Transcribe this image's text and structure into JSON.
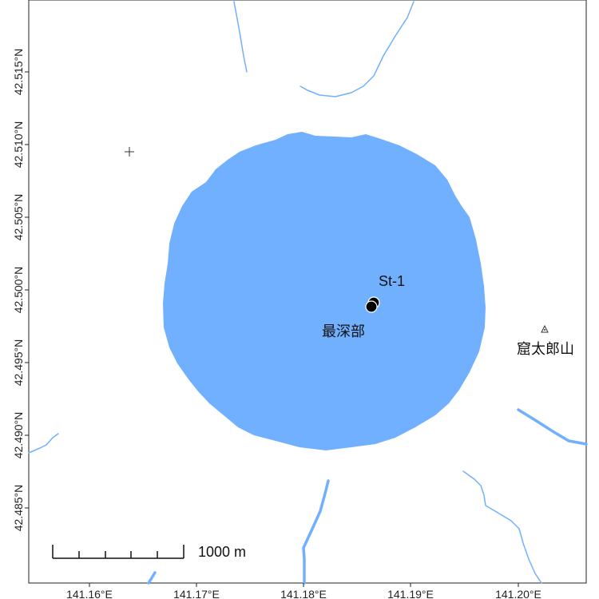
{
  "map": {
    "x_axis_labels": [
      "141.16°E",
      "141.17°E",
      "141.18°E",
      "141.19°E",
      "141.20°E"
    ],
    "y_axis_labels": [
      "42.515°N",
      "42.510°N",
      "42.505°N",
      "42.500°N",
      "42.495°N",
      "42.490°N",
      "42.485°N"
    ],
    "features": {
      "station_label": "St-1",
      "deepest_label": "最深部",
      "peak_label": "窟太郎山"
    },
    "scale_bar": {
      "label": "1000 m"
    },
    "colors": {
      "lake": "#70b0ff",
      "stream": "#70b0ff",
      "frame": "#222222",
      "marker": "#000000"
    }
  }
}
